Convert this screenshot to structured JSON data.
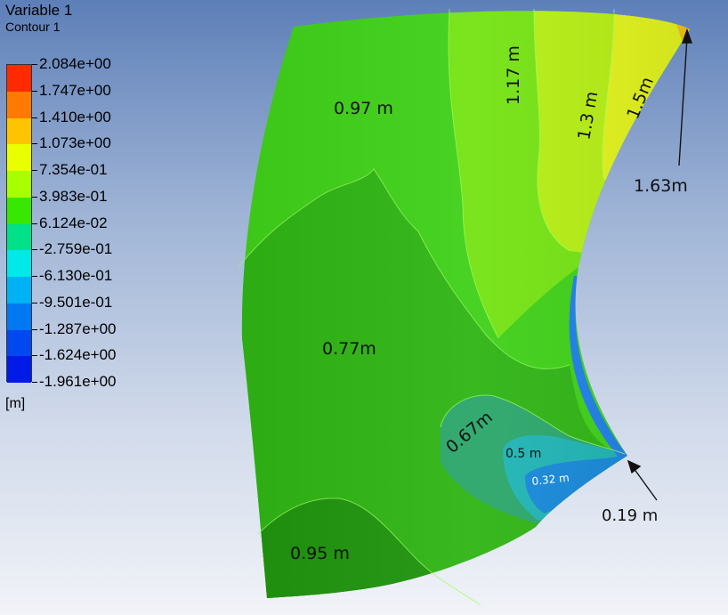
{
  "legend": {
    "variable": "Variable 1",
    "contour": "Contour 1",
    "unit": "[m]",
    "tick_labels": [
      "2.084e+00",
      "1.747e+00",
      "1.410e+00",
      "1.073e+00",
      "7.354e-01",
      "3.983e-01",
      "6.124e-02",
      "-2.759e-01",
      "-6.130e-01",
      "-9.501e-01",
      "-1.287e+00",
      "-1.624e+00",
      "-1.961e+00"
    ],
    "band_colors": [
      "#ff2a00",
      "#ff7a00",
      "#ffc400",
      "#e9ff00",
      "#a8ff00",
      "#39e800",
      "#00e18a",
      "#00e8e8",
      "#00b2f4",
      "#0078f2",
      "#0048ef",
      "#001ae8"
    ]
  },
  "annotations": {
    "a097": "0.97 m",
    "a117": "1.17 m",
    "a13": "1.3 m",
    "a15": "1.5m",
    "a163": "1.63m",
    "a077": "0.77m",
    "a067": "0.67m",
    "a05": "0.5 m",
    "a032": "0.32 m",
    "a019": "0.19 m",
    "a095": "0.95 m"
  }
}
